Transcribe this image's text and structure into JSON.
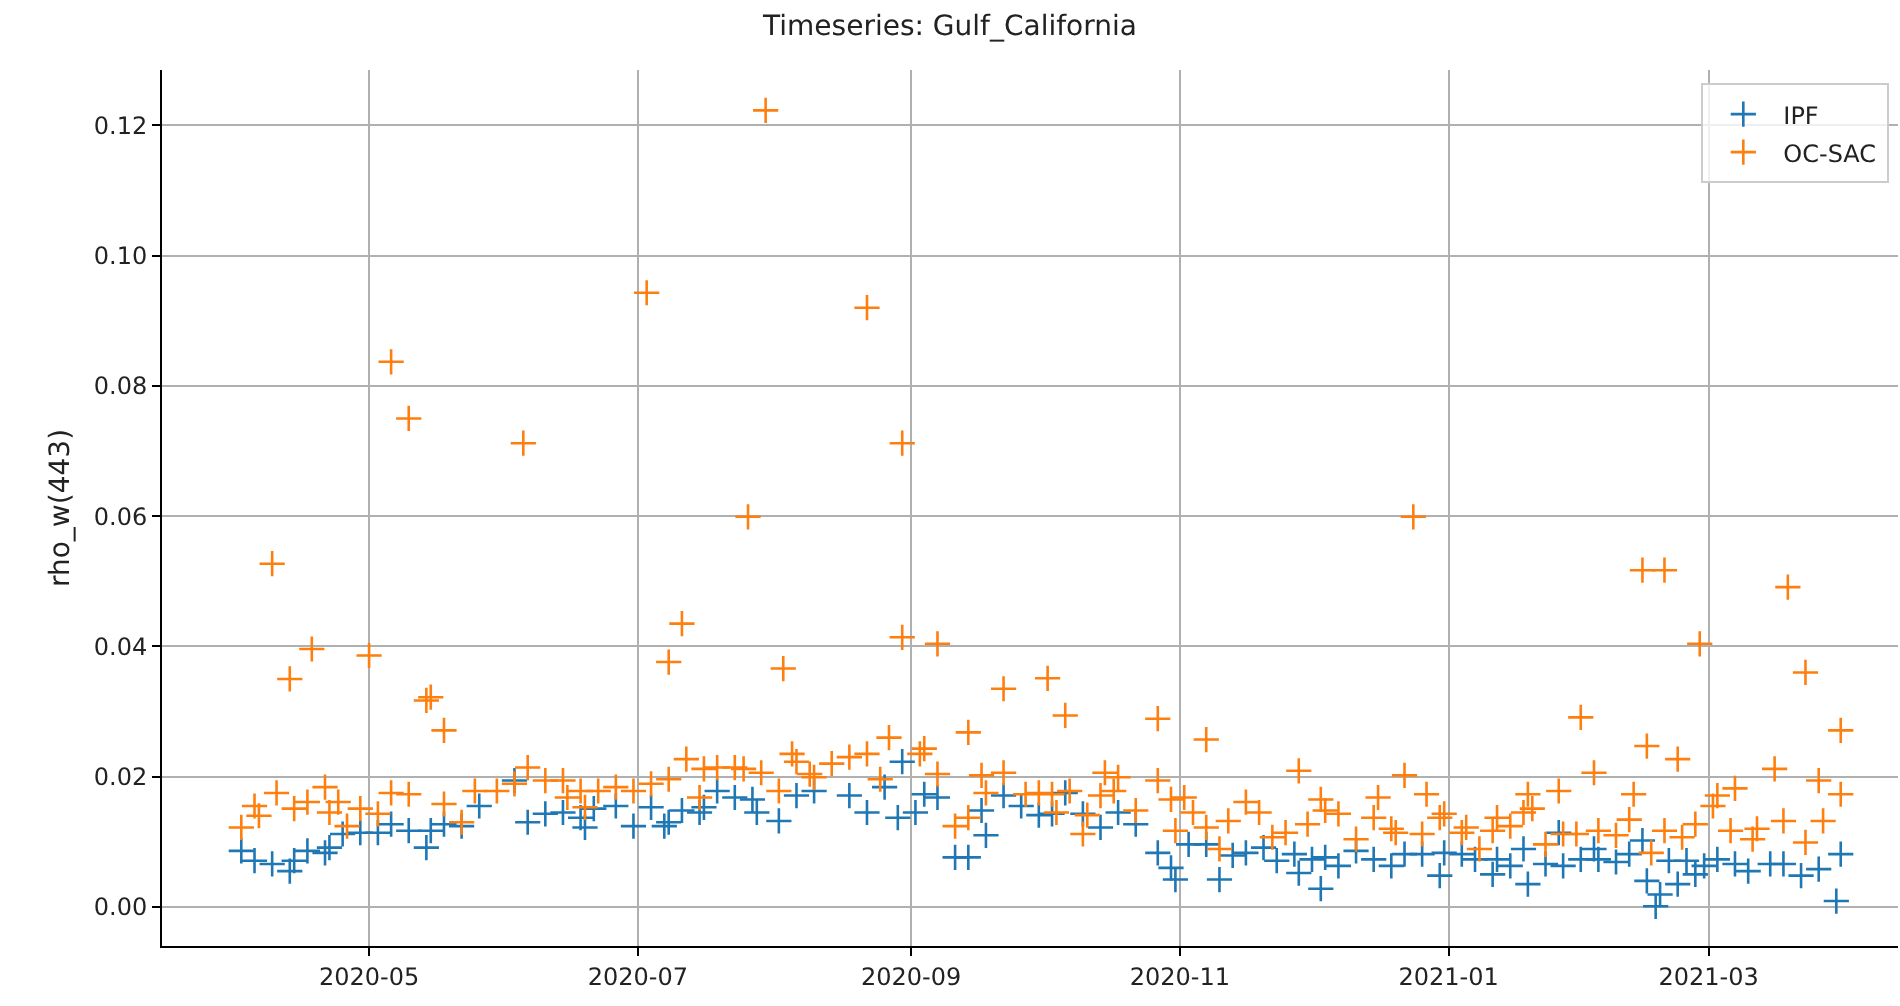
{
  "chart_data": {
    "type": "scatter",
    "title": "Timeseries: Gulf_California",
    "ylabel": "rho_w(443)",
    "xlim": [
      "2020-03-15",
      "2021-04-13"
    ],
    "ylim": [
      -0.006,
      0.1285
    ],
    "xticks": [
      "2020-05",
      "2020-07",
      "2020-09",
      "2020-11",
      "2021-01",
      "2021-03"
    ],
    "yticks": [
      {
        "value": 0,
        "label": "0.00"
      },
      {
        "value": 0.02,
        "label": "0.02"
      },
      {
        "value": 0.04,
        "label": "0.04"
      },
      {
        "value": 0.06,
        "label": "0.06"
      },
      {
        "value": 0.08,
        "label": "0.08"
      },
      {
        "value": 0.1,
        "label": "0.10"
      },
      {
        "value": 0.12,
        "label": "0.12"
      }
    ],
    "grid": true,
    "legend": "top right",
    "marker": "cross",
    "series": [
      {
        "name": "IPF",
        "color": "#1f77b4",
        "x": [
          "2020-04-02",
          "2020-04-05",
          "2020-04-09",
          "2020-04-13",
          "2020-04-14",
          "2020-04-17",
          "2020-04-21",
          "2020-04-22",
          "2020-04-25",
          "2020-04-29",
          "2020-05-03",
          "2020-05-06",
          "2020-05-10",
          "2020-05-14",
          "2020-05-15",
          "2020-05-18",
          "2020-05-22",
          "2020-05-26",
          "2020-06-03",
          "2020-06-06",
          "2020-06-10",
          "2020-06-14",
          "2020-06-18",
          "2020-06-19",
          "2020-06-21",
          "2020-06-26",
          "2020-06-30",
          "2020-07-04",
          "2020-07-07",
          "2020-07-08",
          "2020-07-11",
          "2020-07-15",
          "2020-07-16",
          "2020-07-19",
          "2020-07-23",
          "2020-07-27",
          "2020-07-28",
          "2020-08-02",
          "2020-08-06",
          "2020-08-10",
          "2020-08-18",
          "2020-08-22",
          "2020-08-26",
          "2020-08-29",
          "2020-08-30",
          "2020-09-02",
          "2020-09-04",
          "2020-09-07",
          "2020-09-11",
          "2020-09-14",
          "2020-09-17",
          "2020-09-18",
          "2020-09-22",
          "2020-09-26",
          "2020-09-30",
          "2020-10-03",
          "2020-10-06",
          "2020-10-10",
          "2020-10-14",
          "2020-10-18",
          "2020-10-22",
          "2020-10-27",
          "2020-10-30",
          "2020-10-31",
          "2020-11-03",
          "2020-11-07",
          "2020-11-10",
          "2020-11-13",
          "2020-11-16",
          "2020-11-20",
          "2020-11-23",
          "2020-11-27",
          "2020-11-28",
          "2020-12-01",
          "2020-12-03",
          "2020-12-04",
          "2020-12-07",
          "2020-12-11",
          "2020-12-15",
          "2020-12-19",
          "2020-12-22",
          "2020-12-26",
          "2020-12-30",
          "2020-12-31",
          "2021-01-04",
          "2021-01-07",
          "2021-01-11",
          "2021-01-12",
          "2021-01-15",
          "2021-01-18",
          "2021-01-19",
          "2021-01-23",
          "2021-01-26",
          "2021-01-27",
          "2021-01-31",
          "2021-02-03",
          "2021-02-04",
          "2021-02-08",
          "2021-02-11",
          "2021-02-14",
          "2021-02-15",
          "2021-02-17",
          "2021-02-18",
          "2021-02-20",
          "2021-02-22",
          "2021-02-24",
          "2021-02-26",
          "2021-02-28",
          "2021-03-03",
          "2021-03-07",
          "2021-03-10",
          "2021-03-15",
          "2021-03-18",
          "2021-03-22",
          "2021-03-26",
          "2021-03-30",
          "2021-03-31"
        ],
        "values": [
          0.0086,
          0.0071,
          0.0066,
          0.0055,
          0.0071,
          0.0086,
          0.0083,
          0.0091,
          0.0112,
          0.0114,
          0.0114,
          0.0127,
          0.0117,
          0.0091,
          0.0117,
          0.0127,
          0.0124,
          0.0155,
          0.0194,
          0.013,
          0.0143,
          0.0145,
          0.0137,
          0.0122,
          0.0151,
          0.0155,
          0.0124,
          0.0153,
          0.0124,
          0.013,
          0.0148,
          0.0145,
          0.0153,
          0.0178,
          0.0168,
          0.0165,
          0.0145,
          0.0132,
          0.0171,
          0.0178,
          0.0171,
          0.0145,
          0.0184,
          0.0137,
          0.0223,
          0.0145,
          0.0173,
          0.0168,
          0.0076,
          0.0076,
          0.0148,
          0.011,
          0.0171,
          0.0155,
          0.0141,
          0.0143,
          0.0175,
          0.0143,
          0.0122,
          0.0145,
          0.0127,
          0.0083,
          0.006,
          0.0042,
          0.0096,
          0.0096,
          0.0042,
          0.0079,
          0.0083,
          0.0091,
          0.0071,
          0.0081,
          0.0052,
          0.0073,
          0.0028,
          0.0076,
          0.0063,
          0.0086,
          0.0073,
          0.0063,
          0.0081,
          0.0081,
          0.0048,
          0.0083,
          0.0081,
          0.0073,
          0.005,
          0.0073,
          0.0063,
          0.0089,
          0.0035,
          0.0066,
          0.0114,
          0.0063,
          0.0073,
          0.0089,
          0.0073,
          0.0069,
          0.0081,
          0.0102,
          0.004,
          0.0001,
          0.0019,
          0.0071,
          0.0035,
          0.0071,
          0.005,
          0.0063,
          0.0073,
          0.0066,
          0.0055,
          0.0066,
          0.0066,
          0.0048,
          0.0058,
          0.0009,
          0.0081
        ]
      },
      {
        "name": "OC-SAC",
        "color": "#ff7f0e",
        "x": [
          "2020-04-02",
          "2020-04-05",
          "2020-04-06",
          "2020-04-09",
          "2020-04-10",
          "2020-04-13",
          "2020-04-14",
          "2020-04-17",
          "2020-04-18",
          "2020-04-21",
          "2020-04-22",
          "2020-04-24",
          "2020-04-26",
          "2020-04-29",
          "2020-05-01",
          "2020-05-03",
          "2020-05-06",
          "2020-05-06",
          "2020-05-10",
          "2020-05-10",
          "2020-05-14",
          "2020-05-15",
          "2020-05-18",
          "2020-05-18",
          "2020-05-22",
          "2020-05-25",
          "2020-05-30",
          "2020-06-03",
          "2020-06-05",
          "2020-06-06",
          "2020-06-10",
          "2020-06-14",
          "2020-06-15",
          "2020-06-18",
          "2020-06-19",
          "2020-06-22",
          "2020-06-26",
          "2020-06-30",
          "2020-07-03",
          "2020-07-04",
          "2020-07-08",
          "2020-07-08",
          "2020-07-11",
          "2020-07-12",
          "2020-07-15",
          "2020-07-16",
          "2020-07-19",
          "2020-07-23",
          "2020-07-25",
          "2020-07-26",
          "2020-07-29",
          "2020-07-30",
          "2020-08-02",
          "2020-08-03",
          "2020-08-05",
          "2020-08-06",
          "2020-08-09",
          "2020-08-10",
          "2020-08-14",
          "2020-08-18",
          "2020-08-22",
          "2020-08-22",
          "2020-08-25",
          "2020-08-27",
          "2020-08-30",
          "2020-08-30",
          "2020-09-03",
          "2020-09-04",
          "2020-09-07",
          "2020-09-07",
          "2020-09-11",
          "2020-09-14",
          "2020-09-14",
          "2020-09-17",
          "2020-09-18",
          "2020-09-22",
          "2020-09-22",
          "2020-09-27",
          "2020-09-30",
          "2020-10-02",
          "2020-10-03",
          "2020-10-04",
          "2020-10-06",
          "2020-10-07",
          "2020-10-10",
          "2020-10-11",
          "2020-10-14",
          "2020-10-15",
          "2020-10-17",
          "2020-10-18",
          "2020-10-22",
          "2020-10-27",
          "2020-10-27",
          "2020-10-30",
          "2020-10-31",
          "2020-11-02",
          "2020-11-04",
          "2020-11-07",
          "2020-11-07",
          "2020-11-10",
          "2020-11-12",
          "2020-11-16",
          "2020-11-19",
          "2020-11-22",
          "2020-11-25",
          "2020-11-28",
          "2020-11-30",
          "2020-12-03",
          "2020-12-04",
          "2020-12-07",
          "2020-12-11",
          "2020-12-15",
          "2020-12-16",
          "2020-12-19",
          "2020-12-20",
          "2020-12-22",
          "2020-12-24",
          "2020-12-26",
          "2020-12-27",
          "2020-12-30",
          "2020-12-31",
          "2021-01-04",
          "2021-01-05",
          "2021-01-08",
          "2021-01-11",
          "2021-01-12",
          "2021-01-15",
          "2021-01-18",
          "2021-01-19",
          "2021-01-20",
          "2021-01-23",
          "2021-01-26",
          "2021-01-27",
          "2021-01-30",
          "2021-01-31",
          "2021-02-03",
          "2021-02-04",
          "2021-02-08",
          "2021-02-11",
          "2021-02-12",
          "2021-02-14",
          "2021-02-15",
          "2021-02-16",
          "2021-02-19",
          "2021-02-19",
          "2021-02-22",
          "2021-02-23",
          "2021-02-26",
          "2021-02-27",
          "2021-03-02",
          "2021-03-03",
          "2021-03-06",
          "2021-03-07",
          "2021-03-11",
          "2021-03-12",
          "2021-03-16",
          "2021-03-18",
          "2021-03-19",
          "2021-03-23",
          "2021-03-23",
          "2021-03-26",
          "2021-03-27",
          "2021-03-31",
          "2021-03-31"
        ],
        "values": [
          0.0122,
          0.0155,
          0.014,
          0.0527,
          0.0175,
          0.035,
          0.0151,
          0.0161,
          0.0396,
          0.0184,
          0.0145,
          0.0161,
          0.0124,
          0.0151,
          0.0386,
          0.0143,
          0.0837,
          0.0175,
          0.075,
          0.0173,
          0.0317,
          0.0322,
          0.0271,
          0.0158,
          0.013,
          0.0178,
          0.0178,
          0.0189,
          0.0712,
          0.0214,
          0.0194,
          0.0194,
          0.0168,
          0.0178,
          0.0153,
          0.0178,
          0.0184,
          0.0178,
          0.0943,
          0.0189,
          0.0376,
          0.0196,
          0.0435,
          0.0227,
          0.0168,
          0.0212,
          0.0214,
          0.0214,
          0.0212,
          0.0599,
          0.0206,
          0.1223,
          0.0178,
          0.0366,
          0.0235,
          0.0223,
          0.0204,
          0.0199,
          0.022,
          0.023,
          0.0235,
          0.092,
          0.0196,
          0.026,
          0.0414,
          0.0712,
          0.0235,
          0.0243,
          0.0204,
          0.0404,
          0.0124,
          0.0137,
          0.0268,
          0.0202,
          0.0175,
          0.0206,
          0.0335,
          0.0173,
          0.0175,
          0.0351,
          0.0173,
          0.0145,
          0.0294,
          0.0178,
          0.0112,
          0.0141,
          0.0171,
          0.0206,
          0.0178,
          0.0199,
          0.0148,
          0.0194,
          0.0289,
          0.0165,
          0.0117,
          0.0168,
          0.0145,
          0.0122,
          0.0257,
          0.0089,
          0.0132,
          0.0161,
          0.0145,
          0.0107,
          0.0114,
          0.0209,
          0.0127,
          0.0165,
          0.0148,
          0.0143,
          0.0104,
          0.0137,
          0.0168,
          0.012,
          0.0114,
          0.0202,
          0.0599,
          0.0112,
          0.0173,
          0.0137,
          0.0143,
          0.0114,
          0.0122,
          0.0089,
          0.0117,
          0.0137,
          0.0124,
          0.0145,
          0.0173,
          0.0151,
          0.0096,
          0.0178,
          0.0112,
          0.0112,
          0.0291,
          0.0206,
          0.0117,
          0.011,
          0.0134,
          0.0173,
          0.0517,
          0.0247,
          0.0083,
          0.0517,
          0.0117,
          0.0227,
          0.0107,
          0.0127,
          0.0404,
          0.0155,
          0.0171,
          0.0117,
          0.0182,
          0.0104,
          0.012,
          0.0212,
          0.0132,
          0.0491,
          0.036,
          0.0099,
          0.0194,
          0.0132,
          0.0271,
          0.0173
        ]
      }
    ]
  }
}
